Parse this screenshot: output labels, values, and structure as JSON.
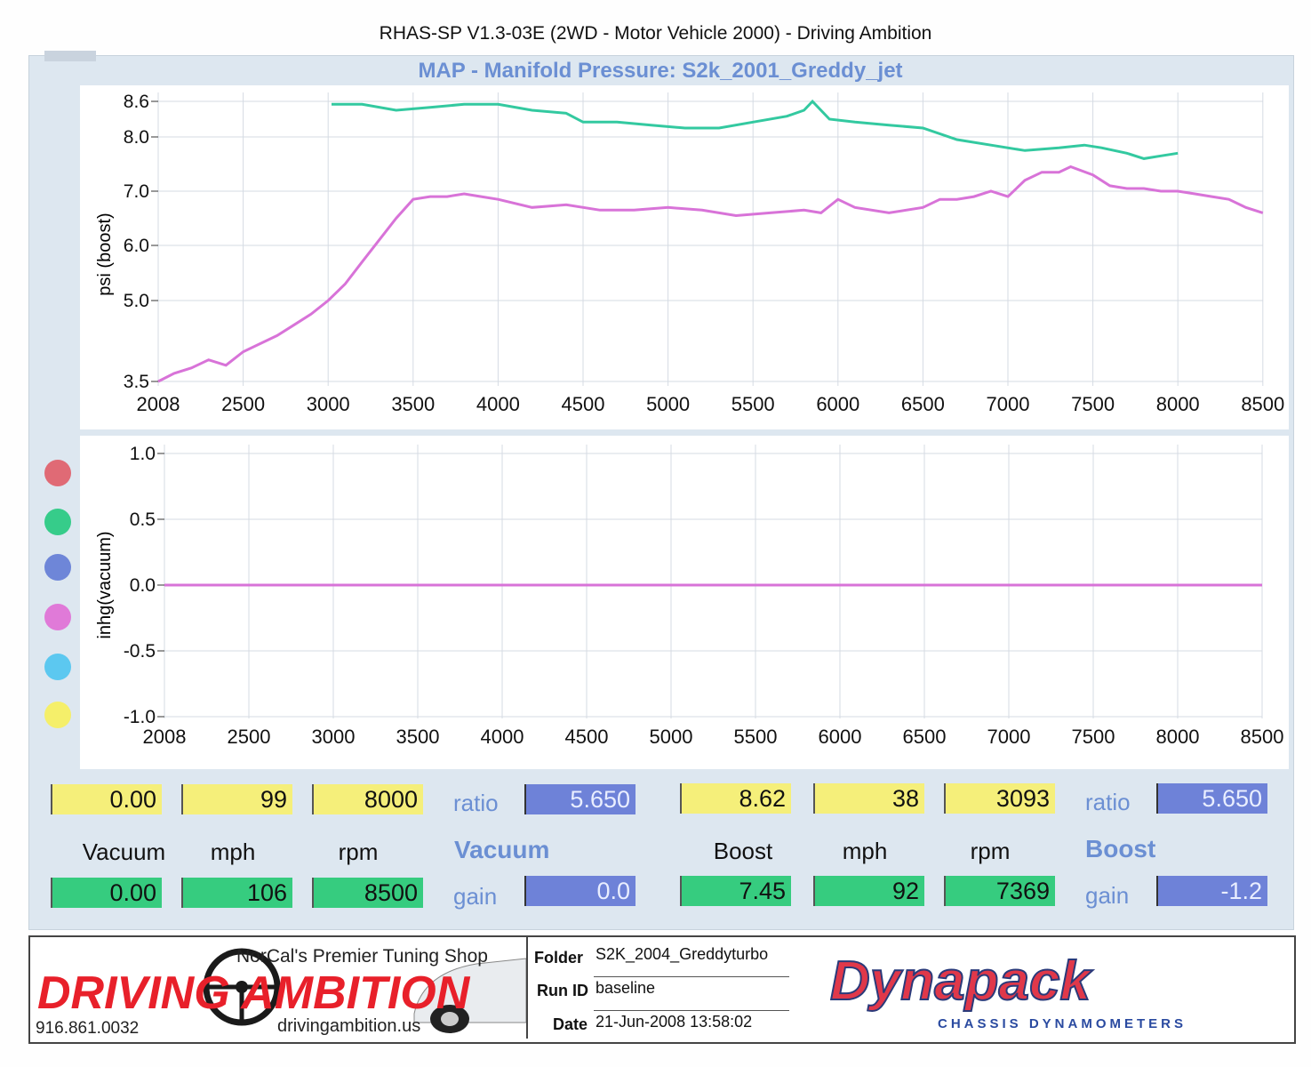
{
  "app_title": "RHAS-SP V1.3-03E  (2WD - Motor Vehicle 2000) - Driving Ambition",
  "chart_title": "MAP - Manifold Pressure: S2k_2001_Greddy_jet",
  "legend_colors": [
    "#e06a75",
    "#36cc8a",
    "#6e86d8",
    "#e07ad8",
    "#5cc8f0",
    "#f5ef6a"
  ],
  "chart_data": [
    {
      "type": "line",
      "ylabel": "psi (boost)",
      "xlim": [
        2008,
        8500
      ],
      "x_ticks": [
        "2008",
        "2500",
        "3000",
        "3500",
        "4000",
        "4500",
        "5000",
        "5500",
        "6000",
        "6500",
        "7000",
        "7500",
        "8000",
        "8500"
      ],
      "y_ticks": [
        "8.6",
        "8.0",
        "7.0",
        "6.0",
        "5.0",
        "3.5"
      ],
      "series": [
        {
          "color": "#33c9a0",
          "x": [
            3020,
            3200,
            3400,
            3600,
            3800,
            4000,
            4200,
            4400,
            4500,
            4700,
            4900,
            5100,
            5300,
            5500,
            5700,
            5800,
            5850,
            5950,
            6100,
            6300,
            6500,
            6700,
            6900,
            7100,
            7300,
            7450,
            7550,
            7700,
            7800,
            7900,
            8000
          ],
          "y": [
            8.55,
            8.55,
            8.45,
            8.5,
            8.55,
            8.55,
            8.45,
            8.4,
            8.25,
            8.25,
            8.2,
            8.15,
            8.15,
            8.25,
            8.35,
            8.45,
            8.6,
            8.3,
            8.25,
            8.2,
            8.15,
            7.95,
            7.85,
            7.75,
            7.8,
            7.85,
            7.8,
            7.7,
            7.6,
            7.65,
            7.7
          ]
        },
        {
          "color": "#d873d8",
          "x": [
            2008,
            2100,
            2200,
            2300,
            2400,
            2500,
            2600,
            2700,
            2800,
            2900,
            3000,
            3100,
            3200,
            3300,
            3400,
            3500,
            3600,
            3700,
            3800,
            3900,
            4000,
            4200,
            4400,
            4600,
            4800,
            5000,
            5200,
            5400,
            5600,
            5800,
            5900,
            6000,
            6100,
            6300,
            6500,
            6600,
            6700,
            6800,
            6900,
            7000,
            7100,
            7200,
            7300,
            7369,
            7500,
            7600,
            7700,
            7800,
            7900,
            8000,
            8100,
            8200,
            8300,
            8400,
            8500
          ],
          "y": [
            3.5,
            3.65,
            3.75,
            3.9,
            3.8,
            4.05,
            4.2,
            4.35,
            4.55,
            4.75,
            5.0,
            5.3,
            5.7,
            6.1,
            6.5,
            6.85,
            6.9,
            6.9,
            6.95,
            6.9,
            6.85,
            6.7,
            6.75,
            6.65,
            6.65,
            6.7,
            6.65,
            6.55,
            6.6,
            6.65,
            6.6,
            6.85,
            6.7,
            6.6,
            6.7,
            6.85,
            6.85,
            6.9,
            7.0,
            6.9,
            7.2,
            7.35,
            7.35,
            7.45,
            7.3,
            7.1,
            7.05,
            7.05,
            7.0,
            7.0,
            6.95,
            6.9,
            6.85,
            6.7,
            6.6
          ]
        }
      ]
    },
    {
      "type": "line",
      "ylabel": "inhg(vacuum)",
      "xlim": [
        2008,
        8500
      ],
      "ylim": [
        -1.0,
        1.0
      ],
      "x_ticks": [
        "2008",
        "2500",
        "3000",
        "3500",
        "4000",
        "4500",
        "5000",
        "5500",
        "6000",
        "6500",
        "7000",
        "7500",
        "8000",
        "8500"
      ],
      "y_ticks": [
        "1.0",
        "0.5",
        "0.0",
        "-0.5",
        "-1.0"
      ],
      "series": [
        {
          "color": "#d873d8",
          "x": [
            2008,
            8500
          ],
          "y": [
            0.0,
            0.0
          ]
        }
      ]
    }
  ],
  "readouts": {
    "left": {
      "vacuum_top": "0.00",
      "mph_top": "99",
      "rpm_top": "8000",
      "ratio_label": "ratio",
      "ratio_value": "5.650",
      "vacuum_label": "Vacuum",
      "mph_label": "mph",
      "rpm_label": "rpm",
      "section_label": "Vacuum",
      "vacuum_bottom": "0.00",
      "mph_bottom": "106",
      "rpm_bottom": "8500",
      "gain_label": "gain",
      "gain_value": "0.0"
    },
    "right": {
      "boost_top": "8.62",
      "mph_top": "38",
      "rpm_top": "3093",
      "ratio_label": "ratio",
      "ratio_value": "5.650",
      "boost_label": "Boost",
      "mph_label": "mph",
      "rpm_label": "rpm",
      "section_label": "Boost",
      "boost_bottom": "7.45",
      "mph_bottom": "92",
      "rpm_bottom": "7369",
      "gain_label": "gain",
      "gain_value": "-1.2"
    }
  },
  "footer": {
    "shop_tagline": "NorCal's Premier Tuning Shop",
    "shop_logo_text": "DRIVING AMBITION",
    "shop_phone": "916.861.0032",
    "shop_url": "drivingambition.us",
    "folder_label": "Folder",
    "folder_value": "S2K_2004_Greddyturbo",
    "runid_label": "Run ID",
    "runid_value": "baseline",
    "date_label": "Date",
    "date_value": "21-Jun-2008  13:58:02",
    "brand_logo": "Dynapack",
    "brand_sub": "CHASSIS    DYNAMOMETERS"
  }
}
